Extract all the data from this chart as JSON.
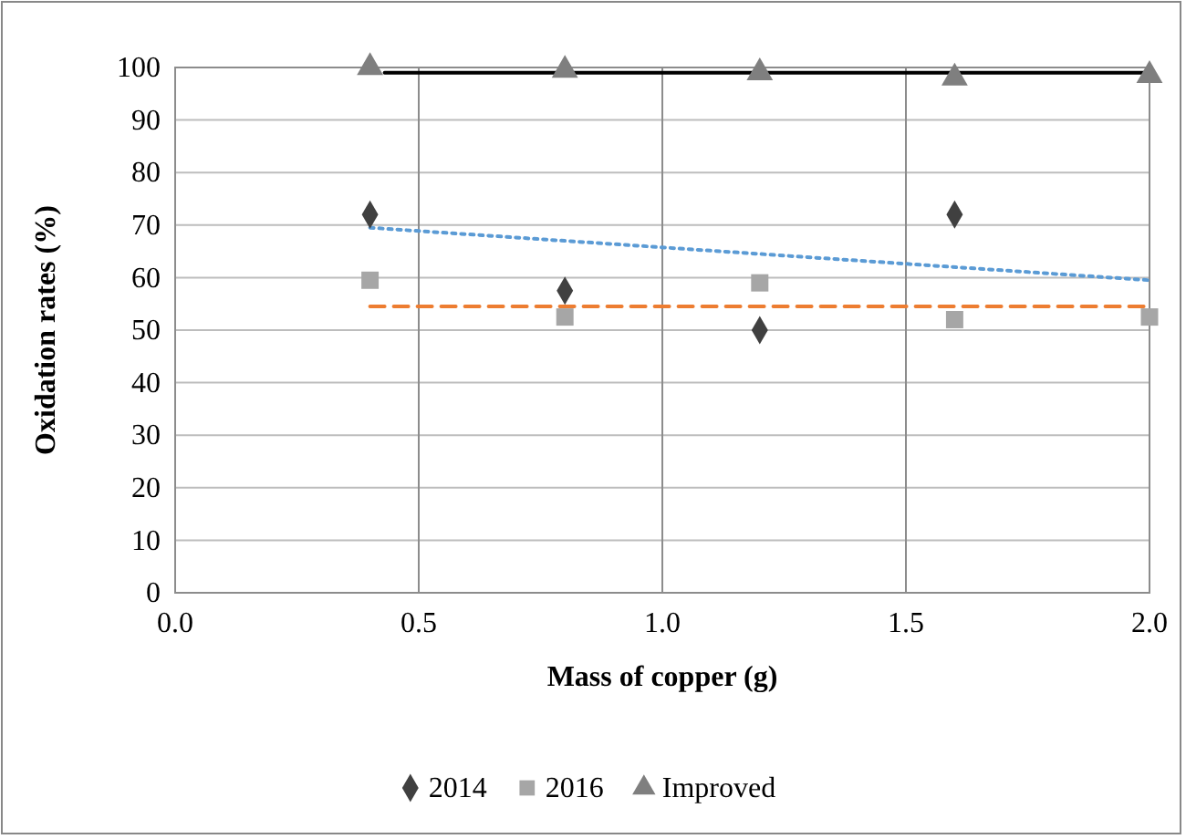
{
  "chart_data": {
    "type": "scatter",
    "xlabel": "Mass of copper (g)",
    "ylabel": "Oxidation rates (%)",
    "xlim": [
      0,
      2
    ],
    "xticks": [
      {
        "value": 0,
        "label": "0.0"
      },
      {
        "value": 0.5,
        "label": "0.5"
      },
      {
        "value": 1,
        "label": "1.0"
      },
      {
        "value": 1.5,
        "label": "1.5"
      },
      {
        "value": 2,
        "label": "2.0"
      }
    ],
    "ylim": [
      0,
      100
    ],
    "yticks": [
      0,
      10,
      20,
      30,
      40,
      50,
      60,
      70,
      80,
      90,
      100
    ],
    "grid": true,
    "legend": "bottom",
    "series": [
      {
        "name": "2014",
        "color": "#404040",
        "marker": "diamond",
        "x": [
          0.4,
          0.8,
          1.2,
          1.6
        ],
        "values": [
          72,
          57.5,
          50,
          72
        ]
      },
      {
        "name": "2016",
        "color": "#a6a6a6",
        "marker": "square",
        "x": [
          0.4,
          0.8,
          1.2,
          1.6,
          2.0
        ],
        "values": [
          59.5,
          52.5,
          59,
          52,
          52.5
        ]
      },
      {
        "name": "Improved",
        "color": "#7f7f7f",
        "marker": "triangle",
        "x": [
          0.4,
          0.8,
          1.2,
          1.6,
          2.0
        ],
        "values": [
          100,
          99.5,
          99,
          98,
          98.5
        ]
      },
      {
        "type": "line",
        "color": "#000000",
        "line_style": "solid",
        "x": [
          0.43,
          2.0
        ],
        "values": [
          99,
          99
        ]
      },
      {
        "type": "line",
        "color": "#5b9bd5",
        "line_style": "dotted",
        "x": [
          0.4,
          2.0
        ],
        "values": [
          69.5,
          59.5
        ]
      },
      {
        "type": "line",
        "color": "#ed7d31",
        "line_style": "dashed",
        "x": [
          0.4,
          2.0
        ],
        "values": [
          54.5,
          54.5
        ]
      }
    ]
  }
}
